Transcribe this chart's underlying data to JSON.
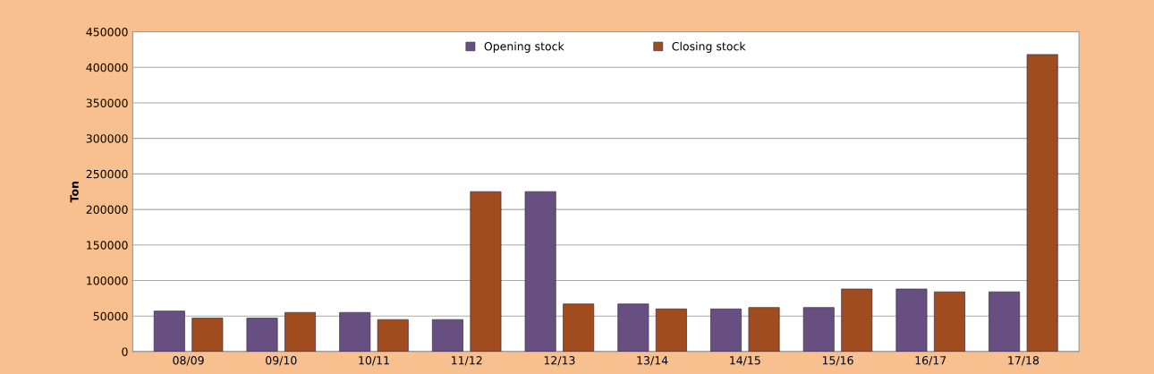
{
  "chart_data": {
    "type": "bar",
    "ylabel": "Ton",
    "categories": [
      "08/09",
      "09/10",
      "10/11",
      "11/12",
      "12/13",
      "13/14",
      "14/15",
      "15/16",
      "16/17",
      "17/18"
    ],
    "series": [
      {
        "name": "Opening stock",
        "color": "#674f82",
        "values": [
          57000,
          47000,
          55000,
          45000,
          225000,
          67000,
          60000,
          62000,
          88000,
          84000
        ]
      },
      {
        "name": "Closing stock",
        "color": "#a04c1f",
        "values": [
          47000,
          55000,
          45000,
          225000,
          67000,
          60000,
          62000,
          88000,
          84000,
          418000
        ]
      }
    ],
    "ylim": [
      0,
      450000
    ],
    "yticks": [
      0,
      50000,
      100000,
      150000,
      200000,
      250000,
      300000,
      350000,
      400000,
      450000
    ],
    "grid": "y",
    "legend": "top"
  }
}
